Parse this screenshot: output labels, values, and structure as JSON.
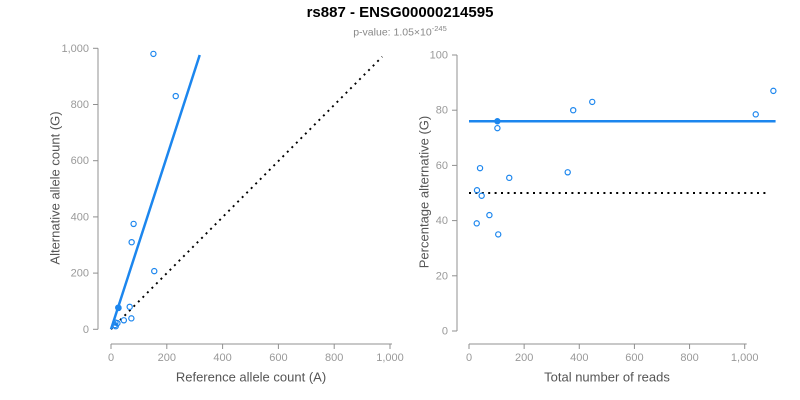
{
  "header": {
    "title": "rs887 - ENSG00000214595",
    "pvalue_prefix": "p-value: 1.05×10",
    "pvalue_exponent": "-245"
  },
  "colors": {
    "accent_blue": "#1C86EE",
    "dotted_line_black": "#000000",
    "axis_gray": "#909090",
    "tick_label_gray": "#999999",
    "axis_label_gray": "#555555"
  },
  "chart_data": [
    {
      "type": "scatter",
      "name": "allele-counts-scatter",
      "xlabel": "Reference allele count (A)",
      "ylabel": "Alternative allele count (G)",
      "xlim": [
        0,
        1000
      ],
      "ylim": [
        0,
        1000
      ],
      "grid": false,
      "legend": null,
      "xticks": {
        "values": [
          0,
          200,
          400,
          600,
          800,
          1000
        ],
        "labels": [
          "0",
          "200",
          "400",
          "600",
          "800",
          "1,000"
        ]
      },
      "yticks": {
        "values": [
          0,
          200,
          400,
          600,
          800,
          1000
        ],
        "labels": [
          "0",
          "200",
          "400",
          "600",
          "800",
          "1,000"
        ]
      },
      "points": [
        {
          "x": 152,
          "y": 980
        },
        {
          "x": 232,
          "y": 830
        },
        {
          "x": 81,
          "y": 375
        },
        {
          "x": 74,
          "y": 310
        },
        {
          "x": 155,
          "y": 207
        },
        {
          "x": 26,
          "y": 77,
          "filled": true
        },
        {
          "x": 27,
          "y": 76
        },
        {
          "x": 67,
          "y": 80
        },
        {
          "x": 73,
          "y": 39
        },
        {
          "x": 46,
          "y": 32
        },
        {
          "x": 23,
          "y": 22
        },
        {
          "x": 16,
          "y": 24
        },
        {
          "x": 14,
          "y": 15
        },
        {
          "x": 17,
          "y": 11
        }
      ],
      "lines": [
        {
          "name": "fit-line",
          "x1": 0,
          "y1": 0,
          "x2": 318,
          "y2": 976,
          "style": "solid",
          "color": "blue"
        },
        {
          "name": "identity-line",
          "x1": 0,
          "y1": 0,
          "x2": 972,
          "y2": 970,
          "style": "dotted",
          "color": "black"
        }
      ]
    },
    {
      "type": "scatter",
      "name": "percentage-vs-reads-scatter",
      "xlabel": "Total number of reads",
      "ylabel": "Percentage alternative (G)",
      "xlim": [
        0,
        1150
      ],
      "ylim": [
        0,
        100
      ],
      "grid": false,
      "legend": null,
      "xticks": {
        "values": [
          0,
          200,
          400,
          600,
          800,
          1000
        ],
        "labels": [
          "0",
          "200",
          "400",
          "600",
          "800",
          "1,000"
        ]
      },
      "yticks": {
        "values": [
          0,
          20,
          40,
          60,
          80,
          100
        ],
        "labels": [
          "0",
          "20",
          "40",
          "60",
          "80",
          "100"
        ]
      },
      "points": [
        {
          "x": 1104,
          "y": 87
        },
        {
          "x": 1040,
          "y": 78.5
        },
        {
          "x": 447,
          "y": 83
        },
        {
          "x": 378,
          "y": 80
        },
        {
          "x": 358,
          "y": 57.5
        },
        {
          "x": 103,
          "y": 76,
          "filled": true
        },
        {
          "x": 103,
          "y": 73.5
        },
        {
          "x": 146,
          "y": 55.5
        },
        {
          "x": 106,
          "y": 35
        },
        {
          "x": 74,
          "y": 42
        },
        {
          "x": 40,
          "y": 59
        },
        {
          "x": 29,
          "y": 51
        },
        {
          "x": 46,
          "y": 49
        },
        {
          "x": 28,
          "y": 39
        }
      ],
      "lines": [
        {
          "name": "mean-percentage-line",
          "x1": 0,
          "y1": 76,
          "x2": 1112,
          "y2": 76,
          "style": "solid",
          "color": "blue"
        },
        {
          "name": "fifty-percent-line",
          "x1": 0,
          "y1": 50,
          "x2": 1090,
          "y2": 50,
          "style": "dotted",
          "color": "black"
        }
      ]
    }
  ]
}
